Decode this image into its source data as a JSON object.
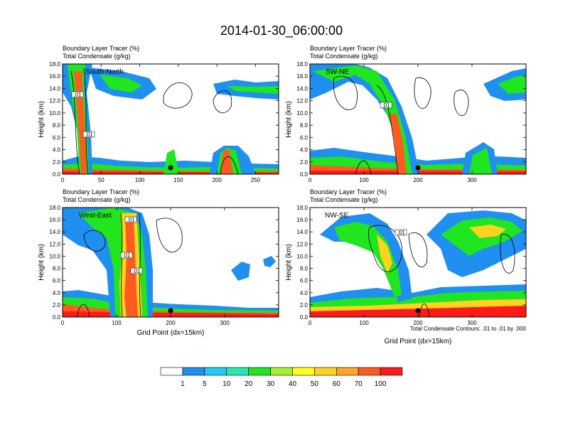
{
  "figure": {
    "title": "2014-01-30_06:00:00",
    "contour_note": "Total Condensate Contours: .01 to .01 by .000",
    "colorbar": {
      "colors": [
        "#ffffff",
        "#1f8ff0",
        "#22c9f7",
        "#25e8b0",
        "#1fe61f",
        "#a6ef2e",
        "#ffff1a",
        "#ffd21f",
        "#ffa51f",
        "#ff5a1f",
        "#ff1a1a"
      ],
      "tick_labels": [
        "1",
        "5",
        "10",
        "20",
        "30",
        "40",
        "50",
        "60",
        "70",
        "100"
      ]
    }
  },
  "chart_data": [
    {
      "type": "heatmap",
      "name": "South-North",
      "title_line1": "Boundary Layer Tracer   (%)",
      "title_line2": "Total Condensate   (g/kg)",
      "ylabel": "Height (km)",
      "xlabel": "",
      "xlim": [
        0,
        280
      ],
      "ylim": [
        0,
        18
      ],
      "xticks": [
        "0",
        "50",
        "100",
        "150",
        "200",
        "250"
      ],
      "xtick_values": [
        0,
        50,
        100,
        150,
        200,
        250
      ],
      "yticks": [
        "0.0",
        "2.0",
        "4.0",
        "6.0",
        "8.0",
        "10.0",
        "12.0",
        "14.0",
        "16.0",
        "18.0"
      ],
      "marker": {
        "x": 140,
        "y": 1.0
      },
      "contour_labels": [
        ".01",
        ".01"
      ]
    },
    {
      "type": "heatmap",
      "name": "SW-NE",
      "title_line1": "Boundary Layer Tracer   (%)",
      "title_line2": "Total Condensate   (g/kg)",
      "ylabel": "Height (km)",
      "xlabel": "",
      "xlim": [
        0,
        400
      ],
      "ylim": [
        0,
        18
      ],
      "xticks": [
        "0",
        "100",
        "200",
        "300"
      ],
      "xtick_values": [
        0,
        100,
        200,
        300
      ],
      "yticks": [
        "0.0",
        "2.0",
        "4.0",
        "6.0",
        "8.0",
        "10.0",
        "12.0",
        "14.0",
        "16.0",
        "18.0"
      ],
      "marker": {
        "x": 200,
        "y": 1.0
      },
      "contour_labels": [
        ".01"
      ]
    },
    {
      "type": "heatmap",
      "name": "West-East",
      "title_line1": "Boundary Layer Tracer   (%)",
      "title_line2": "Total Condensate   (g/kg)",
      "ylabel": "Height (km)",
      "xlabel": "Grid Point (dx=15km)",
      "xlim": [
        0,
        400
      ],
      "ylim": [
        0,
        18
      ],
      "xticks": [
        "0",
        "100",
        "200",
        "300"
      ],
      "xtick_values": [
        0,
        100,
        200,
        300
      ],
      "yticks": [
        "0.0",
        "2.0",
        "4.0",
        "6.0",
        "8.0",
        "10.0",
        "12.0",
        "14.0",
        "16.0",
        "18.0"
      ],
      "marker": {
        "x": 200,
        "y": 1.0
      },
      "contour_labels": [
        ".01",
        ".01",
        ".01"
      ]
    },
    {
      "type": "heatmap",
      "name": "NW-SE",
      "title_line1": "Boundary Layer Tracer   (%)",
      "title_line2": "Total Condensate   (g/kg)",
      "ylabel": "Height (km)",
      "xlabel": "Grid Point (dx=15km)",
      "xlim": [
        0,
        400
      ],
      "ylim": [
        0,
        18
      ],
      "xticks": [
        "0",
        "100",
        "200",
        "300"
      ],
      "xtick_values": [
        0,
        100,
        200,
        300
      ],
      "yticks": [
        "0.0",
        "2.0",
        "4.0",
        "6.0",
        "8.0",
        "10.0",
        "12.0",
        "14.0",
        "16.0",
        "18.0"
      ],
      "marker": {
        "x": 200,
        "y": 1.0
      },
      "contour_labels": [
        ".01"
      ]
    }
  ]
}
